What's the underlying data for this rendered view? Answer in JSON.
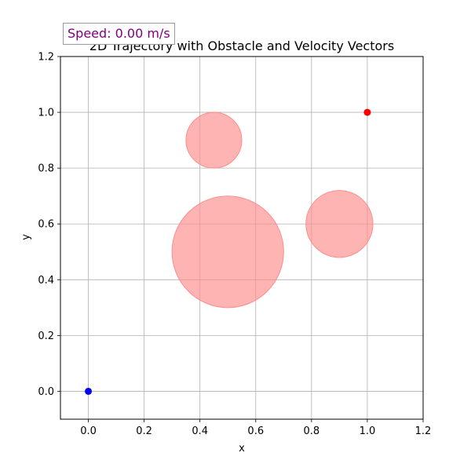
{
  "speed_readout": {
    "text": "Speed: 0.00 m/s",
    "color": "#800080"
  },
  "chart_data": {
    "type": "scatter",
    "title": "2D Trajectory with Obstacle and Velocity Vectors",
    "xlabel": "x",
    "ylabel": "y",
    "xlim": [
      -0.1,
      1.2
    ],
    "ylim": [
      -0.1,
      1.2
    ],
    "xticks": [
      0.0,
      0.2,
      0.4,
      0.6,
      0.8,
      1.0,
      1.2
    ],
    "yticks": [
      0.0,
      0.2,
      0.4,
      0.6,
      0.8,
      1.0,
      1.2
    ],
    "grid": true,
    "obstacles": [
      {
        "x": 0.5,
        "y": 0.5,
        "r": 0.2
      },
      {
        "x": 0.45,
        "y": 0.9,
        "r": 0.1
      },
      {
        "x": 0.9,
        "y": 0.6,
        "r": 0.12
      }
    ],
    "points": [
      {
        "x": 0.0,
        "y": 0.0,
        "color": "#0000ff"
      },
      {
        "x": 1.0,
        "y": 1.0,
        "color": "#ff0000"
      }
    ],
    "obstacle_color": "#ff8c8c"
  }
}
